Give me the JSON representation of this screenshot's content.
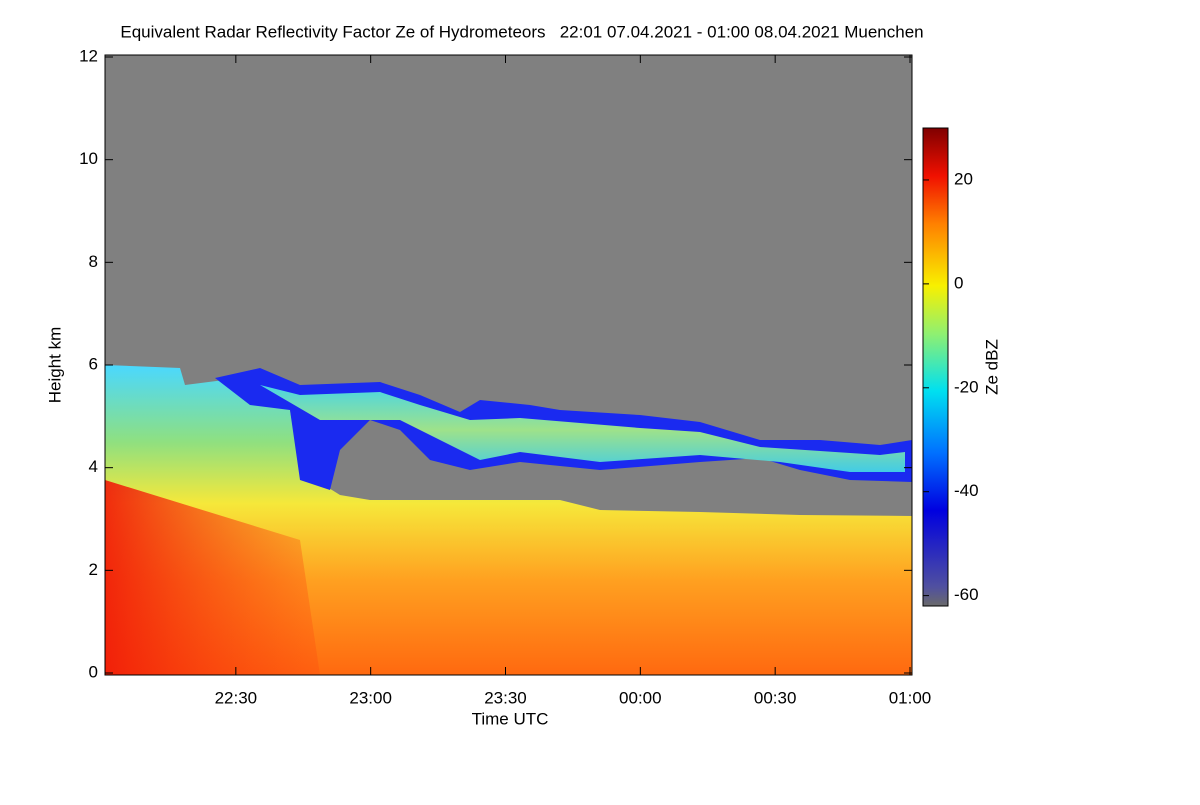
{
  "chart_data": {
    "type": "heatmap",
    "title": "Equivalent Radar Reflectivity Factor Ze of Hydrometeors   22:01 07.04.2021 - 01:00 08.04.2021 Muenchen",
    "x_label": "Time UTC",
    "y_label": "Height km",
    "xlim": [
      1,
      180
    ],
    "xticks": [
      {
        "value": 30,
        "label": "22:30"
      },
      {
        "value": 60,
        "label": "23:00"
      },
      {
        "value": 90,
        "label": "23:30"
      },
      {
        "value": 120,
        "label": "00:00"
      },
      {
        "value": 150,
        "label": "00:30"
      },
      {
        "value": 180,
        "label": "01:00"
      }
    ],
    "ylim": [
      0,
      12
    ],
    "yticks": [
      0,
      2,
      4,
      6,
      8,
      10,
      12
    ],
    "colorbar": {
      "label": "Ze dBZ",
      "lim": [
        -62,
        30
      ],
      "ticks": [
        -60,
        -40,
        -20,
        0,
        20
      ]
    }
  }
}
